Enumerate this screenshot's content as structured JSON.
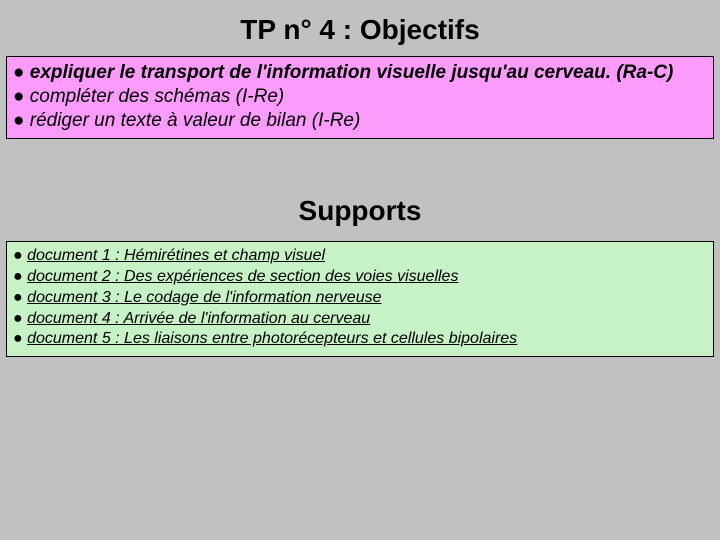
{
  "titles": {
    "objectifs": "TP n° 4 : Objectifs",
    "supports": "Supports"
  },
  "objectifs": {
    "line1a": "● ",
    "line1b": "expliquer le transport de l'information visuelle jusqu'au cerveau. (Ra-C)",
    "line2": "● compléter des schémas (I-Re)",
    "line3": "● rédiger un texte à valeur de bilan (I-Re)"
  },
  "supports": {
    "lead": "● ",
    "doc1": "document 1 : Hémirétines et champ visuel",
    "doc2": "document 2 : Des expériences de section des voies visuelles",
    "doc3": "document 3 : Le codage de l'information nerveuse",
    "doc4": "document 4 : Arrivée de l'information au cerveau",
    "doc5": "document 5 : Les liaisons entre photorécepteurs et cellules bipolaires"
  },
  "style": {
    "background": "#c1c1c1",
    "pink": "#fb9bfb",
    "green": "#c6f2c6",
    "border": "#000000",
    "title_fontsize": 28,
    "pink_fontsize": 19,
    "green_fontsize": 16
  }
}
